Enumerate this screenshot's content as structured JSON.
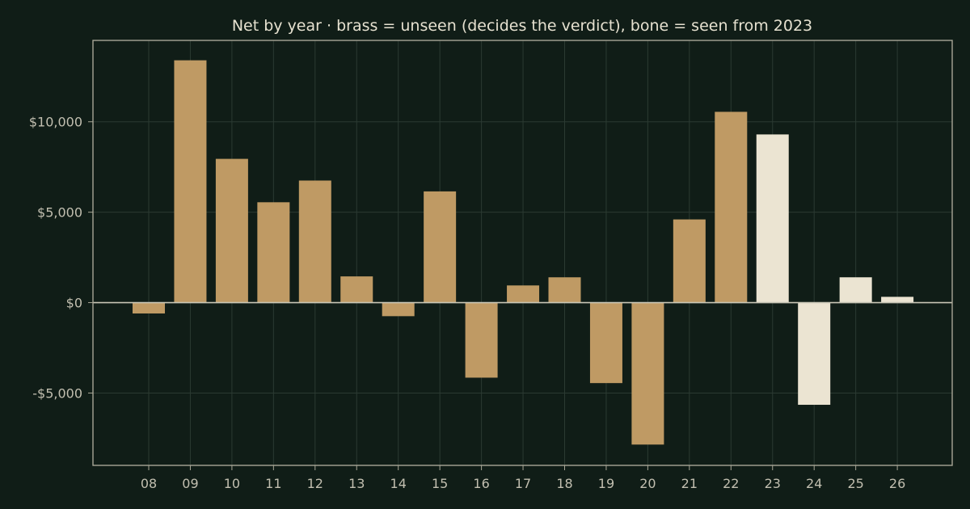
{
  "chart_data": {
    "type": "bar",
    "title": "Net by year  ·  brass = unseen (decides the verdict), bone = seen from 2023",
    "xlabel": "",
    "ylabel": "",
    "categories": [
      "08",
      "09",
      "10",
      "11",
      "12",
      "13",
      "14",
      "15",
      "16",
      "17",
      "18",
      "19",
      "20",
      "21",
      "22",
      "23",
      "24",
      "25",
      "26"
    ],
    "values": [
      -600,
      13400,
      7950,
      5550,
      6750,
      1450,
      -750,
      6150,
      -4150,
      950,
      1400,
      -4450,
      -7850,
      4600,
      10550,
      9300,
      -5650,
      1400,
      320
    ],
    "groups": [
      "unseen",
      "unseen",
      "unseen",
      "unseen",
      "unseen",
      "unseen",
      "unseen",
      "unseen",
      "unseen",
      "unseen",
      "unseen",
      "unseen",
      "unseen",
      "unseen",
      "unseen",
      "seen",
      "seen",
      "seen",
      "seen"
    ],
    "group_colors": {
      "unseen": "#bf9a64",
      "seen": "#ebe4d2"
    },
    "ylim": [
      -9000,
      14500
    ],
    "yticks": [
      -5000,
      0,
      5000,
      10000
    ],
    "ytick_labels": [
      "-$5,000",
      "$0",
      "$5,000",
      "$10,000"
    ],
    "grid": true,
    "legend": "none"
  }
}
